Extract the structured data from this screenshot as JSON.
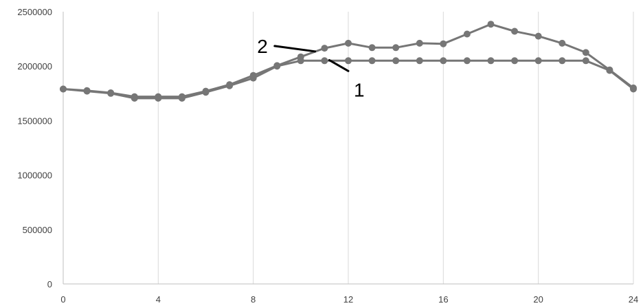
{
  "chart_data": {
    "type": "line",
    "title": "",
    "xlabel": "",
    "ylabel": "",
    "xlim": [
      0,
      24
    ],
    "ylim": [
      0,
      2500000
    ],
    "x_ticks": [
      "0",
      "4",
      "8",
      "12",
      "16",
      "20",
      "24"
    ],
    "y_ticks": [
      "0",
      "500000",
      "1000000",
      "1500000",
      "2000000",
      "2500000"
    ],
    "grid": "vertical",
    "legend": "none",
    "colors": {
      "series": "#767676",
      "grid": "#d9d9d9",
      "axis": "#bfbfbf",
      "callout": "#000000"
    },
    "x": [
      0,
      1,
      2,
      3,
      4,
      5,
      6,
      7,
      8,
      9,
      10,
      11,
      12,
      13,
      14,
      15,
      16,
      17,
      18,
      19,
      20,
      21,
      22,
      23,
      24
    ],
    "series": [
      {
        "name": "2",
        "values": [
          1790000,
          1775000,
          1755000,
          1720000,
          1720000,
          1720000,
          1770000,
          1830000,
          1915000,
          2005000,
          2085000,
          2165000,
          2210000,
          2170000,
          2170000,
          2210000,
          2205000,
          2295000,
          2385000,
          2320000,
          2275000,
          2210000,
          2125000,
          1965000,
          1800000
        ]
      },
      {
        "name": "1",
        "values": [
          1790000,
          1770000,
          1750000,
          1705000,
          1705000,
          1705000,
          1760000,
          1820000,
          1890000,
          2000000,
          2050000,
          2050000,
          2050000,
          2050000,
          2050000,
          2050000,
          2050000,
          2050000,
          2050000,
          2050000,
          2050000,
          2050000,
          2050000,
          1960000,
          1790000
        ]
      }
    ],
    "annotations": [
      {
        "text": "2",
        "target_x": 10.6,
        "target_y": 2135000,
        "label_x": 8.9,
        "label_y": 2185000
      },
      {
        "text": "1",
        "target_x": 11.2,
        "target_y": 2055000,
        "label_x": 12.0,
        "label_y": 1810000
      }
    ]
  }
}
